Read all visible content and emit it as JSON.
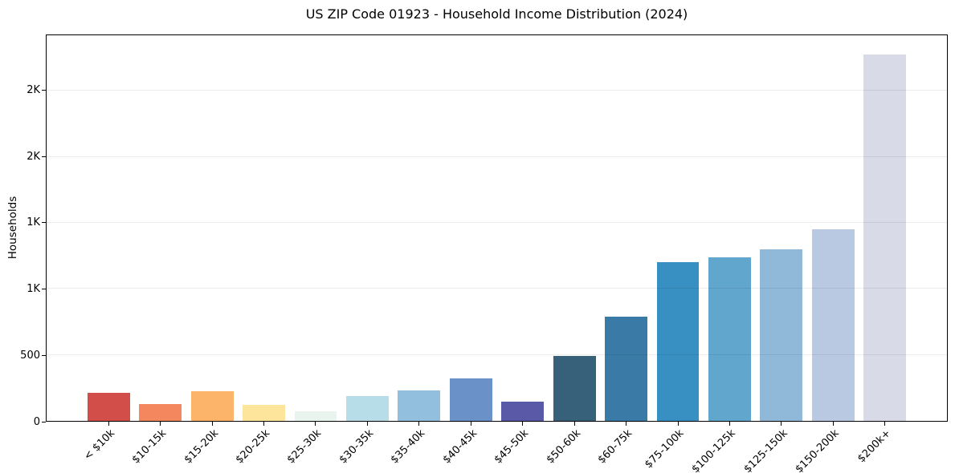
{
  "figure": {
    "title": "US ZIP Code 01923 - Household Income Distribution (2024)"
  },
  "chart_data": {
    "type": "bar",
    "title": "US ZIP Code 01923 - Household Income Distribution (2024)",
    "xlabel": "",
    "ylabel": "Households",
    "categories": [
      "< $10k",
      "$10-15k",
      "$15-20k",
      "$20-25k",
      "$25-30k",
      "$30-35k",
      "$35-40k",
      "$40-45k",
      "$45-50k",
      "$50-60k",
      "$60-75k",
      "$75-100k",
      "$100-125k",
      "$125-150k",
      "$150-200k",
      "$200k+"
    ],
    "values": [
      215,
      125,
      225,
      120,
      75,
      190,
      230,
      320,
      145,
      490,
      790,
      1200,
      1240,
      1300,
      1450,
      2775
    ],
    "bar_colors": [
      "#d14e49",
      "#f5875f",
      "#fcb46a",
      "#fde69c",
      "#e9f4ef",
      "#b7dee8",
      "#91bfdd",
      "#6b92c8",
      "#5a59a8",
      "#37607a",
      "#397ba6",
      "#388fc2",
      "#60a6cd",
      "#90b8d9",
      "#b9c9e1",
      "#d8dae8"
    ],
    "ylim": [
      0,
      2920
    ],
    "yticks": [
      {
        "value": 0,
        "label": "0"
      },
      {
        "value": 500,
        "label": "500"
      },
      {
        "value": 1000,
        "label": "1K"
      },
      {
        "value": 1500,
        "label": "1K"
      },
      {
        "value": 2000,
        "label": "2K"
      },
      {
        "value": 2500,
        "label": "2K"
      }
    ],
    "grid": true,
    "legend": "none",
    "axis_color": "#000000",
    "grid_color": "rgba(0,0,0,0.075)",
    "background_color": "#ffffff"
  }
}
